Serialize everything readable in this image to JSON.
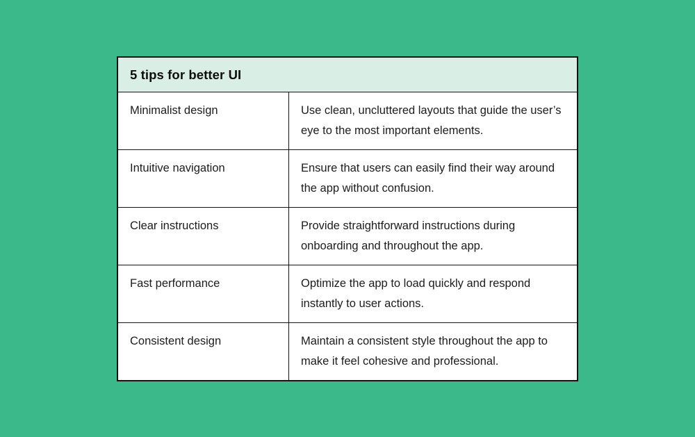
{
  "page": {
    "background_color": "#3CB98A"
  },
  "table": {
    "title": "5 tips for better UI",
    "header_bg_color": "#D9EEE5",
    "border_color": "#121212",
    "rows": [
      {
        "label": "Minimalist design",
        "description": "Use clean, uncluttered layouts that guide the user’s eye to the most important elements."
      },
      {
        "label": "Intuitive navigation",
        "description": "Ensure that users can easily find their way around the app without confusion."
      },
      {
        "label": "Clear instructions",
        "description": "Provide straightforward instructions during onboarding and throughout the app."
      },
      {
        "label": "Fast performance",
        "description": "Optimize the app to load quickly and respond instantly to user actions."
      },
      {
        "label": "Consistent design",
        "description": "Maintain a consistent style throughout the app to make it feel cohesive and professional."
      }
    ]
  }
}
